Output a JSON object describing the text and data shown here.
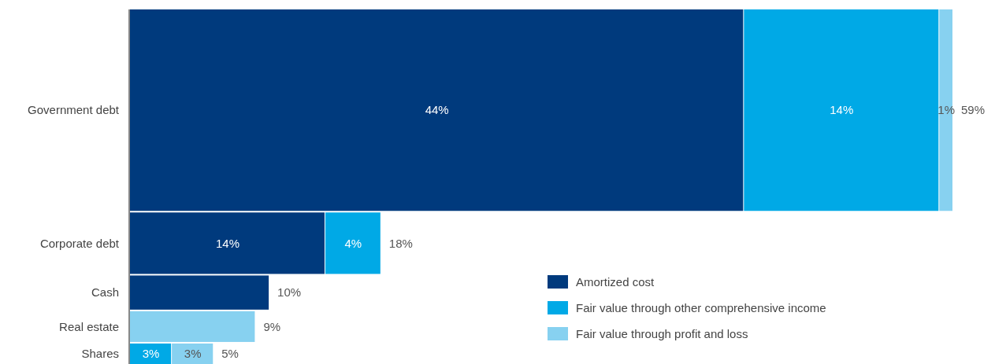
{
  "chart_data": {
    "type": "bar",
    "orientation": "horizontal",
    "stacked": true,
    "categories": [
      "Government debt",
      "Corporate debt",
      "Cash",
      "Real estate",
      "Shares"
    ],
    "series": [
      {
        "name": "Amortized cost",
        "color": "#003a7d",
        "values": [
          44,
          14,
          10,
          null,
          null
        ],
        "value_labels": [
          "44%",
          "14%",
          null,
          null,
          null
        ]
      },
      {
        "name": "Fair value through other comprehensive income",
        "color": "#00a9e6",
        "values": [
          14,
          4,
          null,
          null,
          3
        ],
        "value_labels": [
          "14%",
          "4%",
          null,
          null,
          "3%"
        ]
      },
      {
        "name": "Fair value through profit and loss",
        "color": "#87d1f0",
        "values": [
          1,
          null,
          null,
          9,
          3
        ],
        "value_labels": [
          "1%",
          null,
          null,
          null,
          "3%"
        ]
      }
    ],
    "totals": [
      "59%",
      "18%",
      "10%",
      "9%",
      "5%"
    ],
    "legend": "bottom right"
  }
}
